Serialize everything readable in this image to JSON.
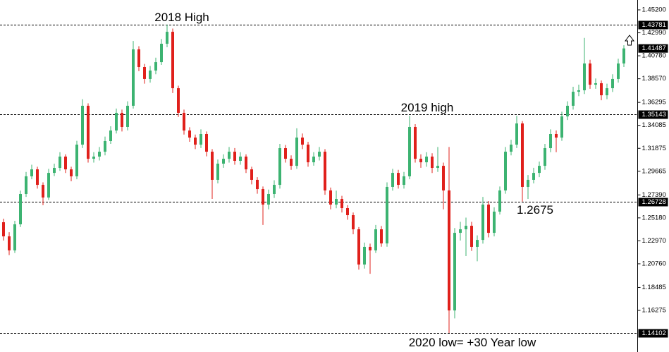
{
  "chart_data": {
    "type": "candlestick",
    "open": [
      1.2476,
      1.234,
      1.2205,
      1.2456,
      1.2748,
      1.2918,
      1.2985,
      1.2836,
      1.2714,
      1.2951,
      1.2999,
      1.3108,
      1.2985,
      1.2918,
      1.3223,
      1.3597,
      1.3087,
      1.3108,
      1.3155,
      1.3257,
      1.3359,
      1.3529,
      1.3393,
      1.3597,
      1.414,
      1.397,
      1.3855,
      1.3936,
      1.4017,
      1.4194,
      1.4309,
      1.3766,
      1.3529,
      1.3359,
      1.3291,
      1.3223,
      1.3325,
      1.3155,
      1.2884,
      1.304,
      1.3087,
      1.3155,
      1.3067,
      1.3108,
      1.2985,
      1.2884,
      1.2795,
      1.2646,
      1.2748,
      1.2836,
      1.3189,
      1.3087,
      1.3019,
      1.3291,
      1.3223,
      1.3053,
      1.3108,
      1.3155,
      1.2782,
      1.2646,
      1.27,
      1.2612,
      1.2544,
      1.2408,
      1.2069,
      1.2239,
      1.2205,
      1.2408,
      1.2272,
      1.2816,
      1.2951,
      1.2836,
      1.2918,
      1.3393,
      1.3087,
      1.3053,
      1.3108,
      1.2999,
      1.3019,
      1.2782,
      1.1627,
      1.2374,
      1.2408,
      1.2442,
      1.2239,
      1.2306,
      1.2646,
      1.2374,
      1.2578,
      1.2782,
      1.3155,
      1.3223,
      1.3427,
      1.2816,
      1.2884,
      1.2951,
      1.3019,
      1.3189,
      1.3325,
      1.3291,
      1.3495,
      1.3597,
      1.3732,
      1.3746,
      1.4004,
      1.38,
      1.3814,
      1.3698,
      1.3766,
      1.3855,
      1.4004
    ],
    "high": [
      1.251,
      1.238,
      1.249,
      1.278,
      1.296,
      1.303,
      1.301,
      1.286,
      1.299,
      1.304,
      1.315,
      1.313,
      1.301,
      1.326,
      1.366,
      1.362,
      1.315,
      1.32,
      1.33,
      1.34,
      1.357,
      1.356,
      1.364,
      1.422,
      1.417,
      1.4,
      1.398,
      1.406,
      1.424,
      1.4378,
      1.434,
      1.379,
      1.356,
      1.339,
      1.332,
      1.337,
      1.335,
      1.318,
      1.308,
      1.313,
      1.32,
      1.319,
      1.315,
      1.313,
      1.301,
      1.291,
      1.282,
      1.279,
      1.288,
      1.323,
      1.322,
      1.312,
      1.338,
      1.333,
      1.325,
      1.315,
      1.32,
      1.318,
      1.281,
      1.278,
      1.273,
      1.264,
      1.257,
      1.243,
      1.228,
      1.227,
      1.245,
      1.244,
      1.286,
      1.299,
      1.298,
      1.296,
      1.35,
      1.342,
      1.313,
      1.315,
      1.314,
      1.32,
      1.305,
      1.32,
      1.242,
      1.248,
      1.252,
      1.248,
      1.235,
      1.272,
      1.268,
      1.262,
      1.282,
      1.32,
      1.327,
      1.35,
      1.345,
      1.293,
      1.3,
      1.306,
      1.323,
      1.337,
      1.336,
      1.354,
      1.364,
      1.378,
      1.38,
      1.425,
      1.404,
      1.386,
      1.384,
      1.381,
      1.39,
      1.405,
      1.418
    ],
    "low": [
      1.23,
      1.216,
      1.218,
      1.243,
      1.272,
      1.289,
      1.28,
      1.264,
      1.269,
      1.292,
      1.297,
      1.295,
      1.287,
      1.289,
      1.319,
      1.305,
      1.305,
      1.307,
      1.312,
      1.323,
      1.333,
      1.335,
      1.336,
      1.357,
      1.393,
      1.381,
      1.382,
      1.39,
      1.399,
      1.416,
      1.372,
      1.349,
      1.332,
      1.325,
      1.318,
      1.319,
      1.311,
      1.27,
      1.285,
      1.3,
      1.305,
      1.303,
      1.303,
      1.295,
      1.284,
      1.275,
      1.245,
      1.26,
      1.271,
      1.28,
      1.305,
      1.298,
      1.299,
      1.318,
      1.301,
      1.302,
      1.307,
      1.274,
      1.26,
      1.261,
      1.257,
      1.25,
      1.236,
      1.202,
      1.203,
      1.198,
      1.218,
      1.224,
      1.224,
      1.278,
      1.28,
      1.28,
      1.289,
      1.305,
      1.3,
      1.301,
      1.295,
      1.296,
      1.26,
      1.141,
      1.155,
      1.23,
      1.215,
      1.22,
      1.21,
      1.227,
      1.233,
      1.234,
      1.255,
      1.275,
      1.312,
      1.319,
      1.2675,
      1.27,
      1.285,
      1.291,
      1.298,
      1.315,
      1.315,
      1.326,
      1.346,
      1.356,
      1.369,
      1.371,
      1.376,
      1.376,
      1.365,
      1.366,
      1.373,
      1.382,
      1.397
    ],
    "close": [
      1.234,
      1.2205,
      1.2456,
      1.2748,
      1.2918,
      1.2985,
      1.2836,
      1.2714,
      1.2951,
      1.2999,
      1.3108,
      1.2985,
      1.2918,
      1.3223,
      1.3597,
      1.3087,
      1.3108,
      1.3155,
      1.3257,
      1.3359,
      1.3529,
      1.3393,
      1.3597,
      1.414,
      1.397,
      1.3855,
      1.3936,
      1.4017,
      1.4194,
      1.4309,
      1.3766,
      1.3529,
      1.3359,
      1.3291,
      1.3223,
      1.3325,
      1.3155,
      1.2884,
      1.304,
      1.3087,
      1.3155,
      1.3067,
      1.3108,
      1.2985,
      1.2884,
      1.2795,
      1.2646,
      1.2748,
      1.2836,
      1.3189,
      1.3087,
      1.3019,
      1.3291,
      1.3223,
      1.3053,
      1.3108,
      1.3155,
      1.2782,
      1.2646,
      1.27,
      1.2612,
      1.2544,
      1.2408,
      1.2069,
      1.2239,
      1.2205,
      1.2408,
      1.2272,
      1.2816,
      1.2951,
      1.2836,
      1.2918,
      1.3393,
      1.3087,
      1.3053,
      1.3108,
      1.2999,
      1.3019,
      1.2782,
      1.1627,
      1.2374,
      1.2408,
      1.2442,
      1.2239,
      1.2306,
      1.2646,
      1.2374,
      1.2578,
      1.2782,
      1.3155,
      1.3223,
      1.3427,
      1.2816,
      1.2884,
      1.2951,
      1.3019,
      1.3189,
      1.3325,
      1.3291,
      1.3495,
      1.3597,
      1.3732,
      1.3746,
      1.4004,
      1.38,
      1.3814,
      1.3698,
      1.3766,
      1.3855,
      1.4004,
      1.4149
    ],
    "up_color": "#3cb371",
    "down_color": "#e0201b",
    "ylim": [
      1.1227,
      1.4615
    ],
    "yticks": [
      {
        "value": 1.452,
        "label": "1.45200"
      },
      {
        "value": 1.4299,
        "label": "1.42990"
      },
      {
        "value": 1.4078,
        "label": "1.40780"
      },
      {
        "value": 1.3857,
        "label": "1.38570"
      },
      {
        "value": 1.36295,
        "label": "1.36295"
      },
      {
        "value": 1.34085,
        "label": "1.34085"
      },
      {
        "value": 1.31875,
        "label": "1.31875"
      },
      {
        "value": 1.29665,
        "label": "1.29665"
      },
      {
        "value": 1.2739,
        "label": "1.27390"
      },
      {
        "value": 1.2518,
        "label": "1.25180"
      },
      {
        "value": 1.2297,
        "label": "1.22970"
      },
      {
        "value": 1.2076,
        "label": "1.20760"
      },
      {
        "value": 1.18485,
        "label": "1.18485"
      },
      {
        "value": 1.16275,
        "label": "1.16275"
      }
    ],
    "levels": [
      1.43781,
      1.35143,
      1.26728,
      1.14102
    ],
    "current_price": 1.41487,
    "annotations": [
      "2018 High",
      "2019 high",
      "1.2675",
      "2020 low= +30 Year low"
    ]
  }
}
